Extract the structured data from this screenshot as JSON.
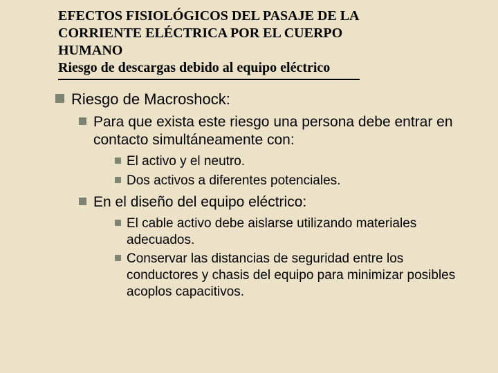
{
  "header": {
    "l1": "EFECTOS FISIOLÓGICOS DEL PASAJE DE LA",
    "l2": "CORRIENTE ELÉCTRICA POR EL CUERPO",
    "l3": "HUMANO",
    "l4": "Riesgo de descargas debido al equipo eléctrico"
  },
  "b0": "Riesgo de Macroshock:",
  "b1a": "Para que exista este riesgo una persona debe entrar en contacto simultáneamente con:",
  "b2a": "El activo y el neutro.",
  "b2b": "Dos activos a diferentes potenciales.",
  "b1b": "En el diseño del equipo eléctrico:",
  "b2c": "El cable activo debe aislarse utilizando materiales adecuados.",
  "b2d": "Conservar las distancias de seguridad entre los conductores y chasis del equipo para minimizar posibles acoplos capacitivos."
}
